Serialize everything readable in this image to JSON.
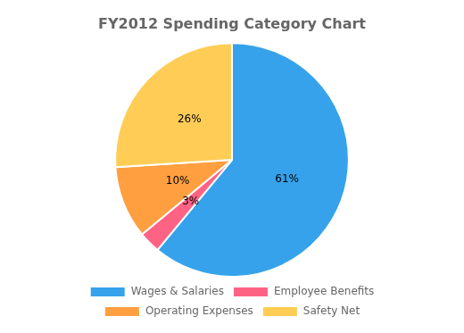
{
  "chart_data": {
    "type": "pie",
    "title": "FY2012 Spending Category Chart",
    "categories": [
      "Wages & Salaries",
      "Employee Benefits",
      "Operating Expenses",
      "Safety Net"
    ],
    "values": [
      61,
      3,
      10,
      26
    ],
    "value_labels": [
      "61%",
      "3%",
      "10%",
      "26%"
    ],
    "data_labels": true,
    "legend": "bottom"
  }
}
